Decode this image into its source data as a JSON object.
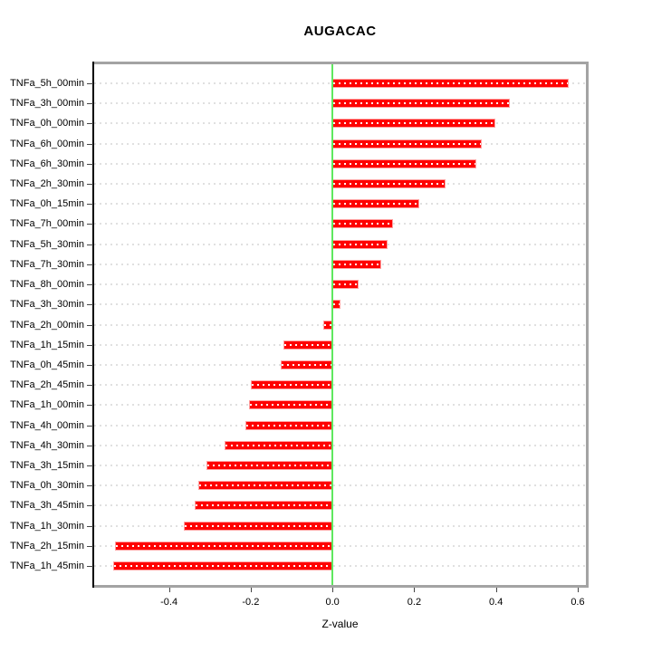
{
  "chart_data": {
    "type": "bar",
    "orientation": "horizontal",
    "title": "AUGACAC",
    "xlabel": "Z-value",
    "ylabel": "",
    "categories": [
      "TNFa_5h_00min",
      "TNFa_3h_00min",
      "TNFa_0h_00min",
      "TNFa_6h_00min",
      "TNFa_6h_30min",
      "TNFa_2h_30min",
      "TNFa_0h_15min",
      "TNFa_7h_00min",
      "TNFa_5h_30min",
      "TNFa_7h_30min",
      "TNFa_8h_00min",
      "TNFa_3h_30min",
      "TNFa_2h_00min",
      "TNFa_1h_15min",
      "TNFa_0h_45min",
      "TNFa_2h_45min",
      "TNFa_1h_00min",
      "TNFa_4h_00min",
      "TNFa_4h_30min",
      "TNFa_3h_15min",
      "TNFa_0h_30min",
      "TNFa_3h_45min",
      "TNFa_1h_30min",
      "TNFa_2h_15min",
      "TNFa_1h_45min"
    ],
    "values": [
      0.578,
      0.433,
      0.399,
      0.366,
      0.351,
      0.276,
      0.213,
      0.148,
      0.135,
      0.119,
      0.063,
      0.019,
      -0.023,
      -0.121,
      -0.127,
      -0.199,
      -0.205,
      -0.212,
      -0.265,
      -0.308,
      -0.328,
      -0.336,
      -0.363,
      -0.531,
      -0.537
    ],
    "xlim": [
      -0.583,
      0.62
    ],
    "x_ticks": {
      "values": [
        -0.4,
        -0.2,
        0.0,
        0.2,
        0.4,
        0.6
      ],
      "labels": [
        "-0.4",
        "-0.2",
        "0.0",
        "0.2",
        "0.4",
        "0.6"
      ]
    },
    "grid": "horizontal-dashed",
    "legend": "none",
    "colors": {
      "bar_fill": "#FF0000",
      "bar_border": "#FFA0A0",
      "bar_dash_overlay": "#FFFFFF",
      "zero_line": "#5FE85F",
      "grid_line": "#E0E0E0",
      "frame": "#A3A3A3",
      "axis": "#000000",
      "tick": "#444444",
      "background": "#FFFFFF",
      "text": "#000000"
    }
  }
}
